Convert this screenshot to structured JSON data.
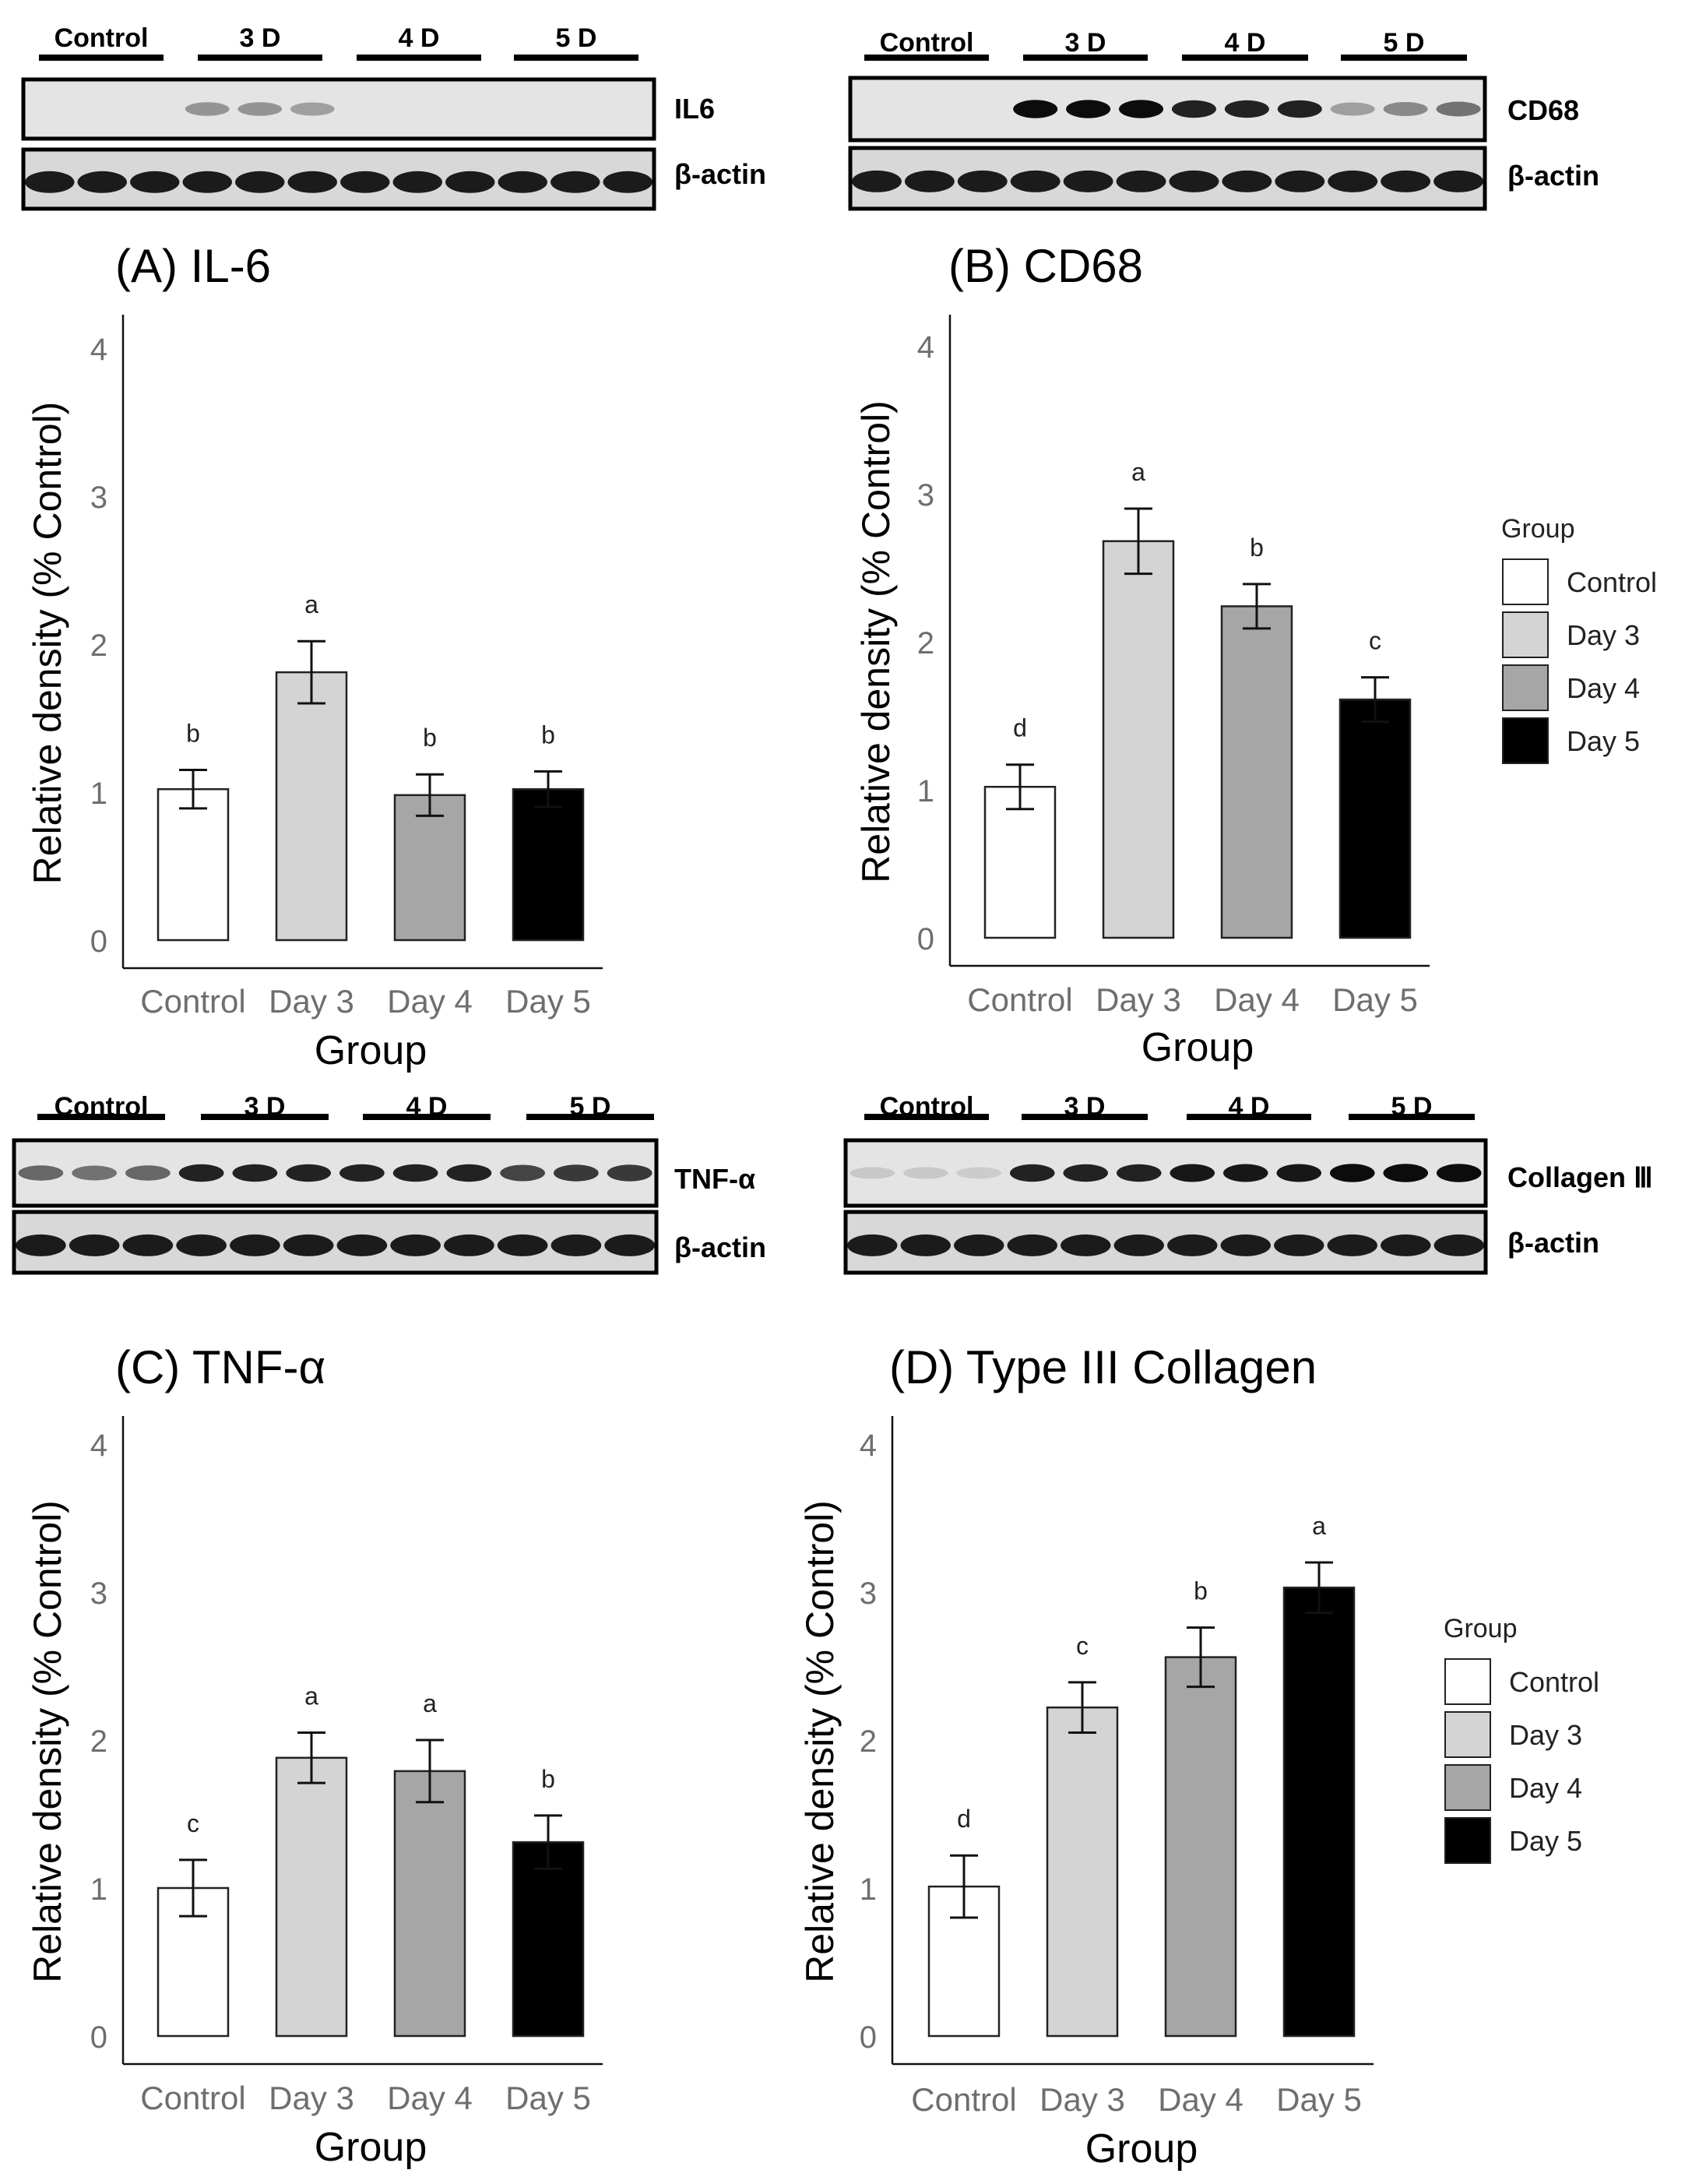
{
  "groups": [
    "Control",
    "Day 3",
    "Day 4",
    "Day 5"
  ],
  "colors": {
    "Control": "#ffffff",
    "Day 3": "#d4d4d4",
    "Day 4": "#a6a6a6",
    "Day 5": "#000000"
  },
  "legend": {
    "title": "Group",
    "items": [
      "Control",
      "Day 3",
      "Day 4",
      "Day 5"
    ]
  },
  "blots": [
    {
      "group_labels": [
        "Control",
        "3 D",
        "4 D",
        "5 D"
      ],
      "target_label": "IL6",
      "loading_label": "β-actin"
    },
    {
      "group_labels": [
        "Control",
        "3 D",
        "4 D",
        "5 D"
      ],
      "target_label": "CD68",
      "loading_label": "β-actin"
    },
    {
      "group_labels": [
        "Control",
        "3 D",
        "4 D",
        "5 D"
      ],
      "target_label": "TNF-α",
      "loading_label": "β-actin"
    },
    {
      "group_labels": [
        "Control",
        "3 D",
        "4 D",
        "5 D"
      ],
      "target_label": "Collagen Ⅲ",
      "loading_label": "β-actin"
    }
  ],
  "chart_data": [
    {
      "type": "bar",
      "title": "(A) IL-6",
      "xlabel": "Group",
      "ylabel": "Relative density (% Control)",
      "categories": [
        "Control",
        "Day 3",
        "Day 4",
        "Day 5"
      ],
      "values": [
        1.02,
        1.81,
        0.98,
        1.02
      ],
      "errors": [
        0.13,
        0.21,
        0.14,
        0.12
      ],
      "significance": [
        "b",
        "a",
        "b",
        "b"
      ],
      "ylim": [
        0,
        4
      ],
      "yticks": [
        "0",
        "1",
        "2",
        "3",
        "4"
      ]
    },
    {
      "type": "bar",
      "title": "(B) CD68",
      "xlabel": "Group",
      "ylabel": "Relative density (% Control)",
      "categories": [
        "Control",
        "Day 3",
        "Day 4",
        "Day 5"
      ],
      "values": [
        1.02,
        2.68,
        2.24,
        1.61
      ],
      "errors": [
        0.15,
        0.22,
        0.15,
        0.15
      ],
      "significance": [
        "d",
        "a",
        "b",
        "c"
      ],
      "ylim": [
        0,
        4
      ],
      "yticks": [
        "0",
        "1",
        "2",
        "3",
        "4"
      ]
    },
    {
      "type": "bar",
      "title": "(C) TNF-α",
      "xlabel": "Group",
      "ylabel": "Relative density (% Control)",
      "categories": [
        "Control",
        "Day 3",
        "Day 4",
        "Day 5"
      ],
      "values": [
        1.0,
        1.88,
        1.79,
        1.31
      ],
      "errors": [
        0.19,
        0.17,
        0.21,
        0.18
      ],
      "significance": [
        "c",
        "a",
        "a",
        "b"
      ],
      "ylim": [
        0,
        4
      ],
      "yticks": [
        "0",
        "1",
        "2",
        "3",
        "4"
      ]
    },
    {
      "type": "bar",
      "title": "(D) Type III Collagen",
      "xlabel": "Group",
      "ylabel": "Relative density (% Control)",
      "categories": [
        "Control",
        "Day 3",
        "Day 4",
        "Day 5"
      ],
      "values": [
        1.01,
        2.22,
        2.56,
        3.03
      ],
      "errors": [
        0.21,
        0.17,
        0.2,
        0.17
      ],
      "significance": [
        "d",
        "c",
        "b",
        "a"
      ],
      "ylim": [
        0,
        4
      ],
      "yticks": [
        "0",
        "1",
        "2",
        "3",
        "4"
      ]
    }
  ]
}
